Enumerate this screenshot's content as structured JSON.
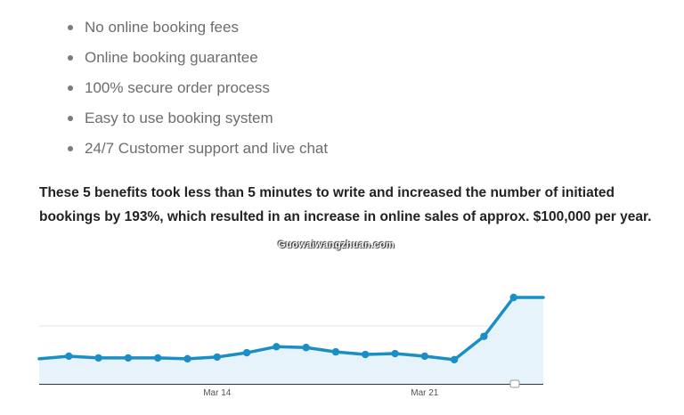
{
  "benefits": [
    "No online booking fees",
    "Online booking guarantee",
    "100% secure order process",
    "Easy to use booking system",
    "24/7 Customer support and live chat"
  ],
  "summary": "These 5 benefits took less than 5 minutes to write and increased the number of initiated bookings by 193%, which resulted in an increase in online sales of approx. $100,000 per year.",
  "watermark": "Guowaiwangzhuan.com",
  "colors": {
    "line": "#1b8ec6",
    "fill": "#e6f3fa",
    "grid": "#e6e6e6",
    "text": "#6d6d6d"
  },
  "chart_data": {
    "type": "area",
    "x": [
      "Mar 8",
      "Mar 9",
      "Mar 10",
      "Mar 11",
      "Mar 12",
      "Mar 13",
      "Mar 14",
      "Mar 15",
      "Mar 16",
      "Mar 17",
      "Mar 18",
      "Mar 19",
      "Mar 20",
      "Mar 21",
      "Mar 22",
      "Mar 23",
      "Mar 24",
      "Mar 25"
    ],
    "tick_labels": [
      {
        "at": "Mar 14",
        "label": "Mar 14"
      },
      {
        "at": "Mar 21",
        "label": "Mar 21"
      }
    ],
    "series": [
      {
        "values": [
          29,
          32,
          30,
          30,
          30,
          29,
          31,
          36,
          43,
          42,
          37,
          34,
          35,
          32,
          28,
          55,
          100,
          100
        ]
      }
    ],
    "ylim": [
      0,
      100
    ],
    "grid": true
  }
}
